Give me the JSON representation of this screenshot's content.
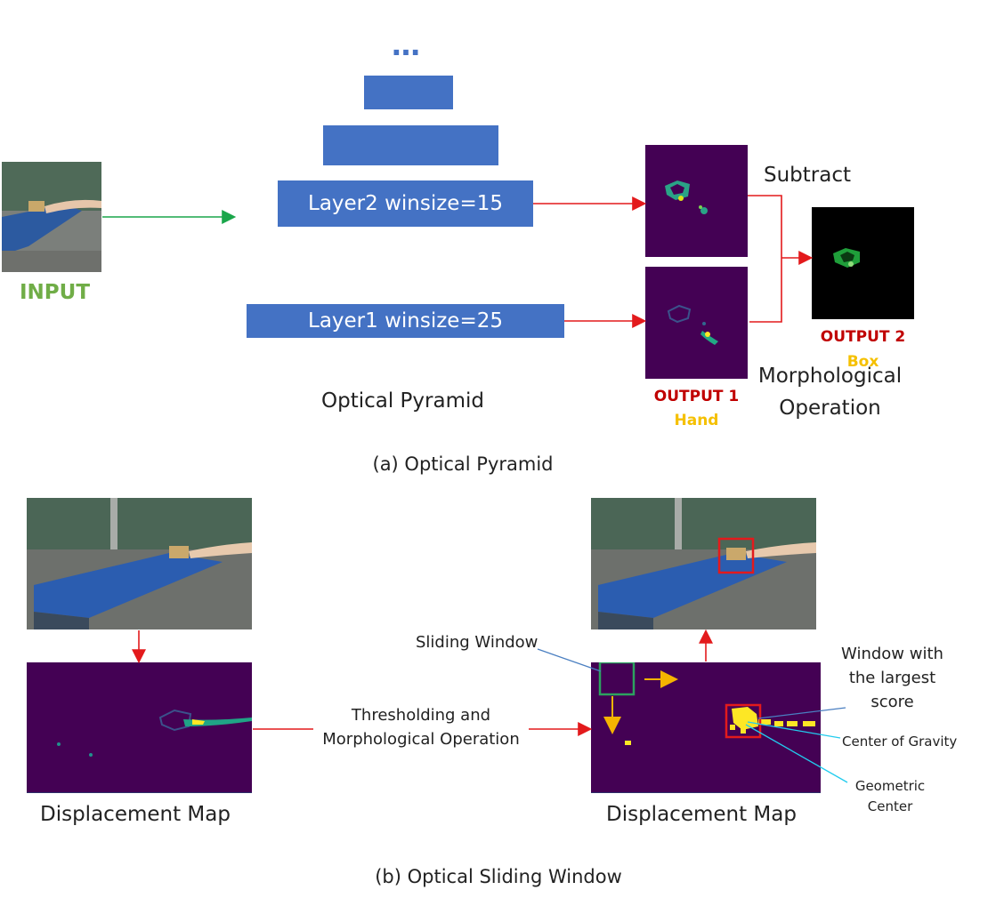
{
  "panel_a": {
    "input_label": "INPUT",
    "ellipsis": "…",
    "layer2_label": "Layer2 winsize=15",
    "layer1_label": "Layer1 winsize=25",
    "pyramid_caption": "Optical Pyramid",
    "subtract_label": "Subtract",
    "output1_title": "OUTPUT 1",
    "output1_sub": "Hand",
    "output2_title": "OUTPUT 2",
    "output2_sub": "Box",
    "morph_line1": "Morphological",
    "morph_line2": "Operation",
    "caption": "(a) Optical Pyramid"
  },
  "panel_b": {
    "left_map_caption": "Displacement Map",
    "threshold_line1": "Thresholding and",
    "threshold_line2": "Morphological Operation",
    "sliding_window_label": "Sliding Window",
    "largest_line1": "Window with",
    "largest_line2": "the largest",
    "largest_line3": "score",
    "cog_label": "Center of Gravity",
    "geo_line1": "Geometric",
    "geo_line2": "Center",
    "right_map_caption": "Displacement Map",
    "caption": "(b) Optical Sliding Window"
  },
  "colors": {
    "layer_blue": "#4472c4",
    "arrow_red": "#e31a1c",
    "arrow_green": "#1aa64a",
    "input_green": "#70ad47",
    "output_red": "#c00000",
    "output_yellow": "#f5c000",
    "map_purple": "#440154",
    "window_green": "#2ca25f",
    "arrow_orange": "#f5b400",
    "line_blue": "#4a7fc1",
    "line_cyan": "#22ccee"
  }
}
